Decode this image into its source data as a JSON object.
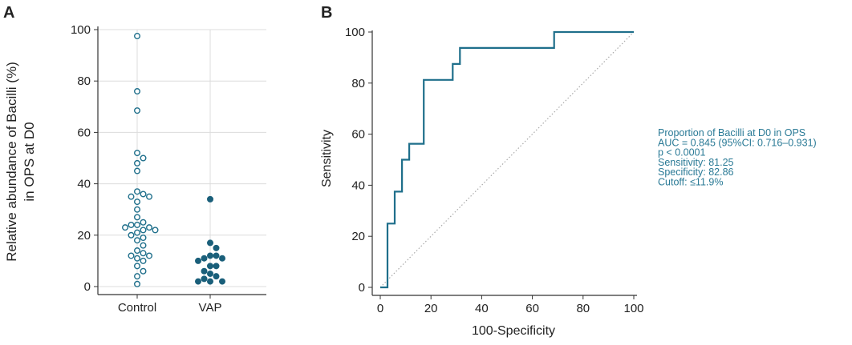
{
  "chart_data": [
    {
      "panel_label": "A",
      "type": "scatter",
      "ylabel_lines": [
        "Relative abundance of Bacilli (%)",
        "in OPS at D0"
      ],
      "categories": [
        "Control",
        "VAP"
      ],
      "ylim": [
        0,
        100
      ],
      "yticks": [
        0,
        20,
        40,
        60,
        80,
        100
      ],
      "grid": true,
      "series": [
        {
          "category": "Control",
          "marker": "open-circle",
          "color": "#1f6f8b",
          "values": [
            97.5,
            76,
            68.5,
            52,
            50,
            48,
            45,
            37,
            36,
            35,
            35,
            33,
            30,
            27,
            25,
            24,
            24,
            23,
            23,
            22,
            22,
            21,
            20,
            19,
            18,
            16,
            14,
            13,
            12,
            12,
            11,
            10,
            8,
            6,
            4,
            1
          ]
        },
        {
          "category": "VAP",
          "marker": "filled-circle",
          "color": "#1a5f7a",
          "values": [
            34,
            17,
            15,
            12,
            12,
            11,
            11,
            10,
            8,
            8,
            6,
            5,
            4,
            3,
            2,
            2,
            2
          ]
        }
      ]
    },
    {
      "panel_label": "B",
      "type": "line",
      "xlabel": "100-Specificity",
      "ylabel": "Sensitivity",
      "xlim": [
        0,
        100
      ],
      "ylim": [
        0,
        100
      ],
      "xticks": [
        0,
        20,
        40,
        60,
        80,
        100
      ],
      "yticks": [
        0,
        20,
        40,
        60,
        80,
        100
      ],
      "series": [
        {
          "x": [
            0,
            2.86,
            2.86,
            5.71,
            5.71,
            8.57,
            8.57,
            11.43,
            11.43,
            17.14,
            17.14,
            28.57,
            28.57,
            31.43,
            31.43,
            68.57,
            68.57,
            100
          ],
          "y": [
            0,
            0,
            25,
            25,
            37.5,
            37.5,
            50,
            50,
            56.25,
            56.25,
            81.25,
            81.25,
            87.5,
            87.5,
            93.75,
            93.75,
            100,
            100
          ],
          "color": "#1f6f8b"
        }
      ],
      "reference_line": {
        "x": [
          0,
          100
        ],
        "y": [
          0,
          100
        ],
        "style": "dotted",
        "color": "#aaaaaa"
      },
      "legend_lines": [
        "Proportion of Bacilli at D0 in OPS",
        "AUC = 0.845 (95%CI: 0.716–0.931)",
        "p < 0.0001",
        "Sensitivity: 81.25",
        "Specificity: 82.86",
        "Cutoff: ≤11.9%"
      ],
      "legend_color": "#2a7a96"
    }
  ]
}
